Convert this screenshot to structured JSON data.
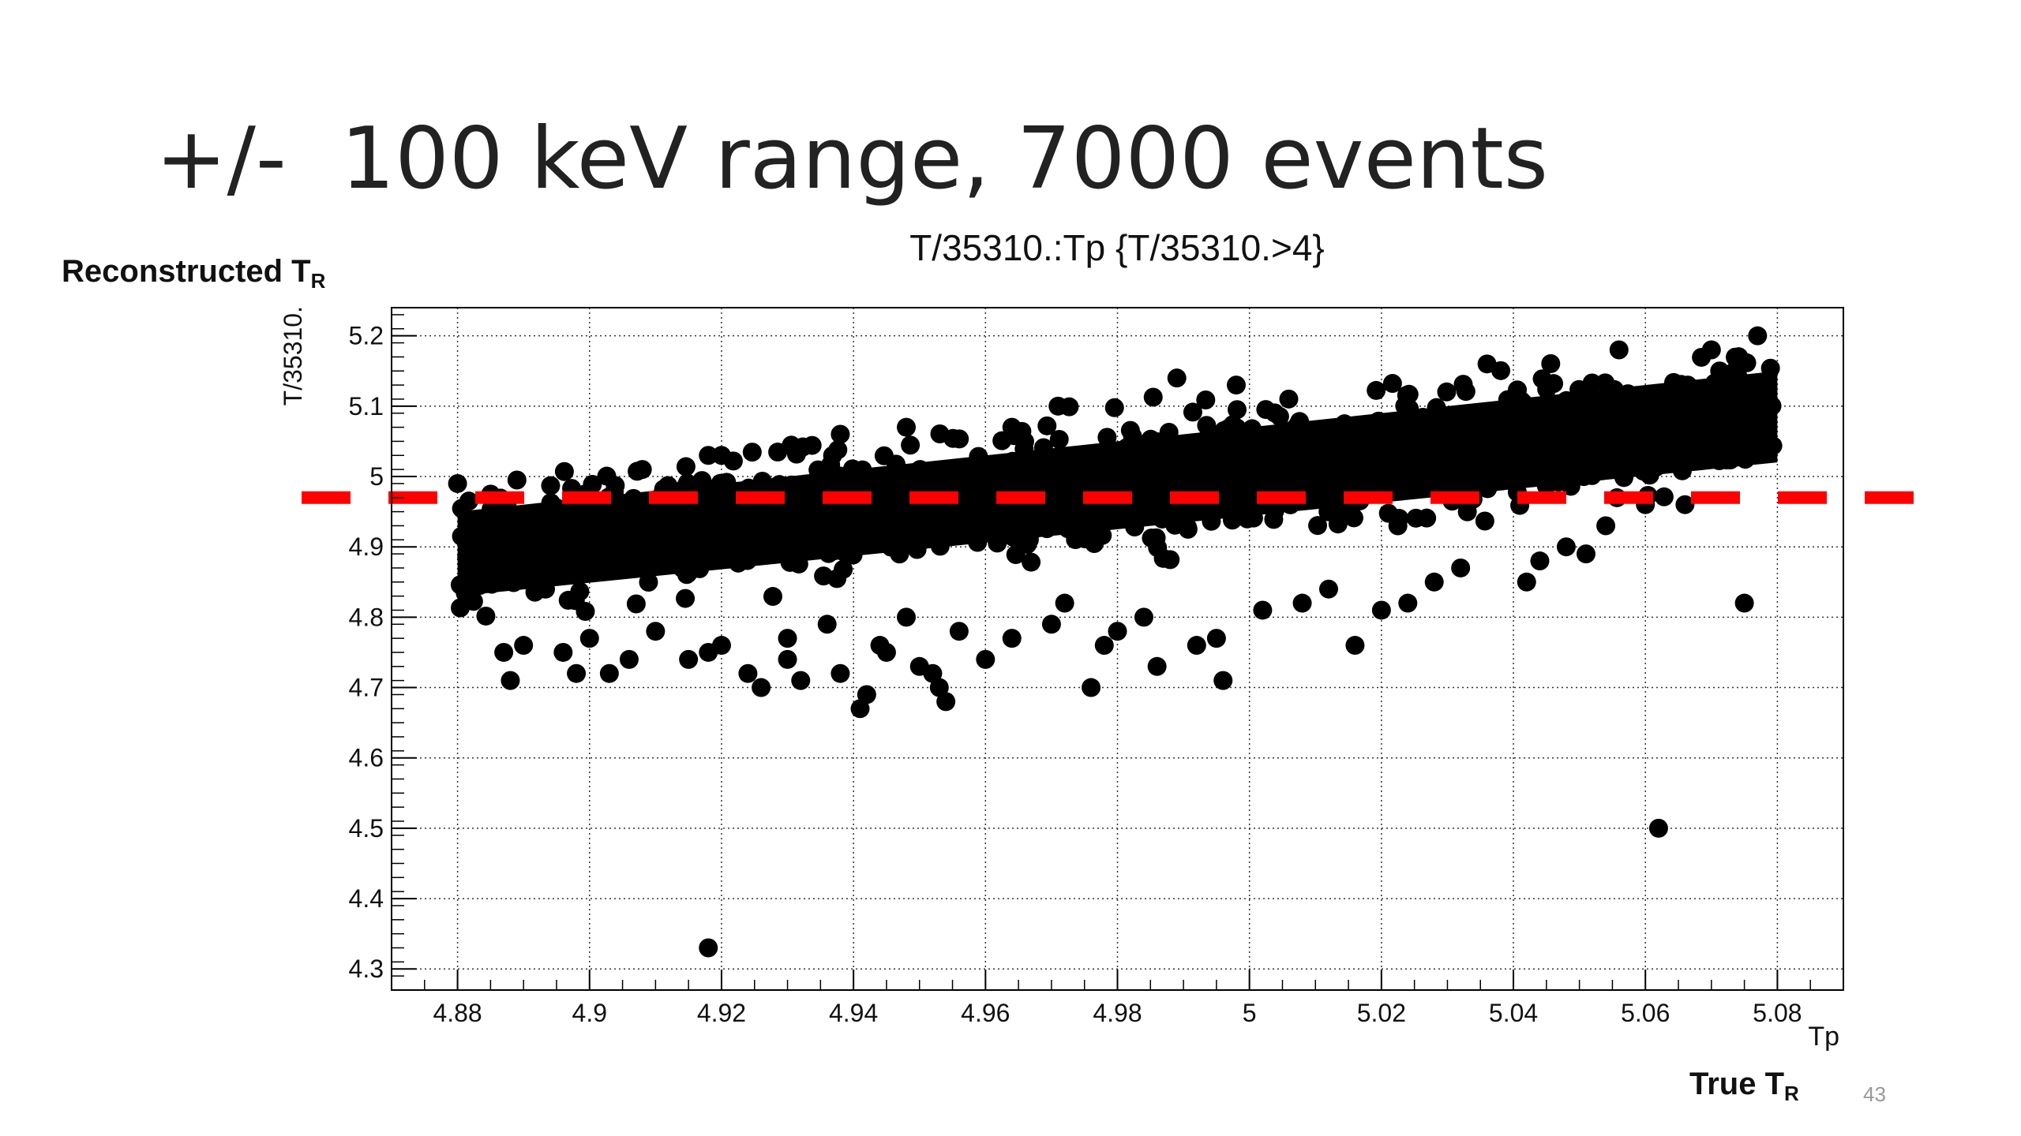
{
  "slide": {
    "title": "+/-  100 keV range, 7000 events",
    "y_caption_main": "Reconstructed T",
    "y_caption_sub": "R",
    "x_caption_main": "True T",
    "x_caption_sub": "R",
    "page_number": "43"
  },
  "chart_data": {
    "type": "scatter",
    "title": "T/35310.:Tp {T/35310.>4}",
    "xlabel": "Tp",
    "ylabel": "T/35310.",
    "xlim": [
      4.87,
      5.09
    ],
    "ylim": [
      4.27,
      5.24
    ],
    "x_ticks": [
      4.88,
      4.9,
      4.92,
      4.94,
      4.96,
      4.98,
      5,
      5.02,
      5.04,
      5.06,
      5.08
    ],
    "x_tick_labels": [
      "4.88",
      "4.9",
      "4.92",
      "4.94",
      "4.96",
      "4.98",
      "5",
      "5.02",
      "5.04",
      "5.06",
      "5.08"
    ],
    "y_ticks": [
      4.3,
      4.4,
      4.5,
      4.6,
      4.7,
      4.8,
      4.9,
      5,
      5.1,
      5.2
    ],
    "y_tick_labels": [
      "4.3",
      "4.4",
      "4.5",
      "4.6",
      "4.7",
      "4.8",
      "4.9",
      "5",
      "5.1",
      "5.2"
    ],
    "grid": true,
    "marker_color": "#000000",
    "threshold_line": {
      "y": 4.97,
      "color": "#ff0000",
      "style": "dashed"
    },
    "trend": {
      "x_start": 4.88,
      "x_end": 5.08,
      "y_start": 4.89,
      "y_end": 5.09,
      "band_halfwidth": 0.05
    },
    "points": [
      [
        4.88,
        4.99
      ],
      [
        4.889,
        4.995
      ],
      [
        4.918,
        4.33
      ],
      [
        5.062,
        4.5
      ],
      [
        5.075,
        4.82
      ],
      [
        5.051,
        4.89
      ],
      [
        4.989,
        5.14
      ],
      [
        4.998,
        5.13
      ],
      [
        4.971,
        5.1
      ],
      [
        4.964,
        5.07
      ],
      [
        4.948,
        5.07
      ],
      [
        4.938,
        5.06
      ],
      [
        4.918,
        5.03
      ],
      [
        4.92,
        5.03
      ],
      [
        4.908,
        5.01
      ],
      [
        5.036,
        5.16
      ],
      [
        5.056,
        5.18
      ],
      [
        5.07,
        5.18
      ],
      [
        5.077,
        5.2
      ],
      [
        4.888,
        4.71
      ],
      [
        4.898,
        4.72
      ],
      [
        4.903,
        4.72
      ],
      [
        4.887,
        4.75
      ],
      [
        4.89,
        4.76
      ],
      [
        4.906,
        4.74
      ],
      [
        4.915,
        4.74
      ],
      [
        4.918,
        4.75
      ],
      [
        4.92,
        4.76
      ],
      [
        4.924,
        4.72
      ],
      [
        4.926,
        4.7
      ],
      [
        4.932,
        4.71
      ],
      [
        4.938,
        4.72
      ],
      [
        4.941,
        4.67
      ],
      [
        4.942,
        4.69
      ],
      [
        4.945,
        4.75
      ],
      [
        4.95,
        4.73
      ],
      [
        4.952,
        4.72
      ],
      [
        4.953,
        4.7
      ],
      [
        4.954,
        4.68
      ],
      [
        4.96,
        4.74
      ],
      [
        4.976,
        4.7
      ],
      [
        4.98,
        4.78
      ],
      [
        4.986,
        4.73
      ],
      [
        4.992,
        4.76
      ],
      [
        4.996,
        4.71
      ],
      [
        5.016,
        4.76
      ],
      [
        4.93,
        4.77
      ],
      [
        4.936,
        4.79
      ],
      [
        4.956,
        4.78
      ],
      [
        4.964,
        4.77
      ],
      [
        4.97,
        4.79
      ],
      [
        4.984,
        4.8
      ],
      [
        5.002,
        4.81
      ],
      [
        5.02,
        4.81
      ],
      [
        5.024,
        4.82
      ],
      [
        5.028,
        4.85
      ],
      [
        5.032,
        4.87
      ],
      [
        5.042,
        4.85
      ],
      [
        5.044,
        4.88
      ],
      [
        5.048,
        4.9
      ],
      [
        5.054,
        4.93
      ],
      [
        5.06,
        4.96
      ],
      [
        5.066,
        4.96
      ],
      [
        4.995,
        4.77
      ],
      [
        4.978,
        4.76
      ],
      [
        4.91,
        4.78
      ],
      [
        4.9,
        4.77
      ],
      [
        4.896,
        4.75
      ],
      [
        5.012,
        4.84
      ],
      [
        5.008,
        4.82
      ],
      [
        4.972,
        4.82
      ],
      [
        4.948,
        4.8
      ],
      [
        4.944,
        4.76
      ],
      [
        4.93,
        4.74
      ]
    ]
  }
}
